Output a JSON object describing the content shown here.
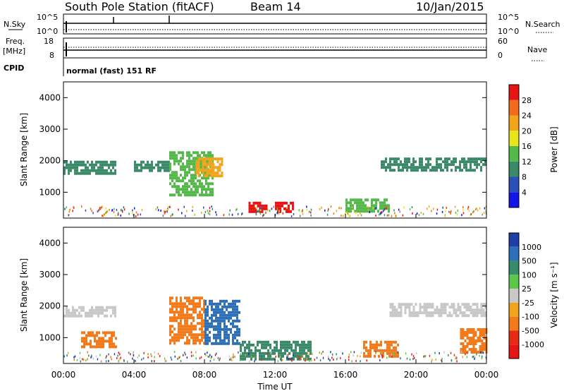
{
  "header": {
    "title": "South Pole Station (fitACF)",
    "beam": "Beam 14",
    "date": "10/Jan/2015"
  },
  "left_labels": {
    "nsky": "N.Sky",
    "freq": "Freq.",
    "freq_unit": "[MHz]",
    "cpid": "CPID"
  },
  "right_labels": {
    "nsearch": "N.Search",
    "nave": "Nave"
  },
  "noise_panel": {
    "left_ticks": [
      "10^5",
      "10^0"
    ],
    "right_ticks": [
      "10^5",
      "10^0"
    ]
  },
  "freq_panel": {
    "left_ticks": [
      "18",
      "8"
    ],
    "right_ticks": [
      "60",
      "0"
    ]
  },
  "cpid_text": "normal (fast) 151 RF",
  "xaxis": {
    "label": "Time UT",
    "ticks": [
      "00:00",
      "04:00",
      "08:00",
      "12:00",
      "16:00",
      "20:00",
      "00:00"
    ]
  },
  "yaxis": {
    "label": "Slant Range [km]",
    "ticks": [
      "1000",
      "2000",
      "3000",
      "4000"
    ]
  },
  "power_bar": {
    "label": "Power [dB]",
    "ticks": [
      "4",
      "8",
      "12",
      "16",
      "20",
      "24",
      "28"
    ],
    "colors": [
      "#1414e6",
      "#2a4fb8",
      "#3a8a6a",
      "#55b84a",
      "#e6e61a",
      "#f2a51a",
      "#f26a1a",
      "#e61414"
    ]
  },
  "velocity_bar": {
    "label": "Velocity [m s⁻¹]",
    "ticks": [
      "1000",
      "500",
      "100",
      "25",
      "-25",
      "-100",
      "-500",
      "-1000"
    ],
    "colors": [
      "#1f3fa8",
      "#2e70b8",
      "#3a8a6a",
      "#5cc84a",
      "#c8c8c8",
      "#f2a51a",
      "#f27a1a",
      "#e62a14",
      "#e61414"
    ]
  },
  "chart_data": {
    "type": "heatmap",
    "title": "South Pole Station (fitACF)",
    "xlabel": "Time UT",
    "ylabel": "Slant Range [km]",
    "xlim": [
      0,
      24
    ],
    "ylim": [
      180,
      4500
    ],
    "panels": [
      {
        "name": "Power",
        "unit": "dB",
        "colorbar_range": [
          0,
          32
        ],
        "features": [
          {
            "t_start": 0.0,
            "t_end": 3.0,
            "range_start": 1600,
            "range_end": 2000,
            "value": 10
          },
          {
            "t_start": 4.0,
            "t_end": 6.0,
            "range_start": 1700,
            "range_end": 2000,
            "value": 8
          },
          {
            "t_start": 6.0,
            "t_end": 8.5,
            "range_start": 900,
            "range_end": 2300,
            "value": 14
          },
          {
            "t_start": 7.5,
            "t_end": 9.0,
            "range_start": 1500,
            "range_end": 2100,
            "value": 20
          },
          {
            "t_start": 10.5,
            "t_end": 11.5,
            "range_start": 400,
            "range_end": 700,
            "value": 28
          },
          {
            "t_start": 12.0,
            "t_end": 13.0,
            "range_start": 400,
            "range_end": 700,
            "value": 28
          },
          {
            "t_start": 16.0,
            "t_end": 18.5,
            "range_start": 400,
            "range_end": 800,
            "value": 12
          },
          {
            "t_start": 18.0,
            "t_end": 24.0,
            "range_start": 1700,
            "range_end": 2100,
            "value": 8
          }
        ]
      },
      {
        "name": "Velocity",
        "unit": "m s-1",
        "colorbar_range": [
          -1000,
          1000
        ],
        "features": [
          {
            "t_start": 0.0,
            "t_end": 3.0,
            "range_start": 1700,
            "range_end": 2000,
            "value": 0
          },
          {
            "t_start": 1.0,
            "t_end": 3.0,
            "range_start": 700,
            "range_end": 1200,
            "value": -200
          },
          {
            "t_start": 6.0,
            "t_end": 8.0,
            "range_start": 800,
            "range_end": 2300,
            "value": -200
          },
          {
            "t_start": 8.0,
            "t_end": 10.0,
            "range_start": 800,
            "range_end": 2200,
            "value": 500
          },
          {
            "t_start": 10.0,
            "t_end": 14.0,
            "range_start": 300,
            "range_end": 900,
            "value": 200
          },
          {
            "t_start": 17.0,
            "t_end": 19.0,
            "range_start": 400,
            "range_end": 900,
            "value": -300
          },
          {
            "t_start": 18.5,
            "t_end": 24.0,
            "range_start": 1700,
            "range_end": 2100,
            "value": 0
          },
          {
            "t_start": 22.5,
            "t_end": 24.0,
            "range_start": 500,
            "range_end": 1300,
            "value": -500
          }
        ]
      }
    ]
  }
}
